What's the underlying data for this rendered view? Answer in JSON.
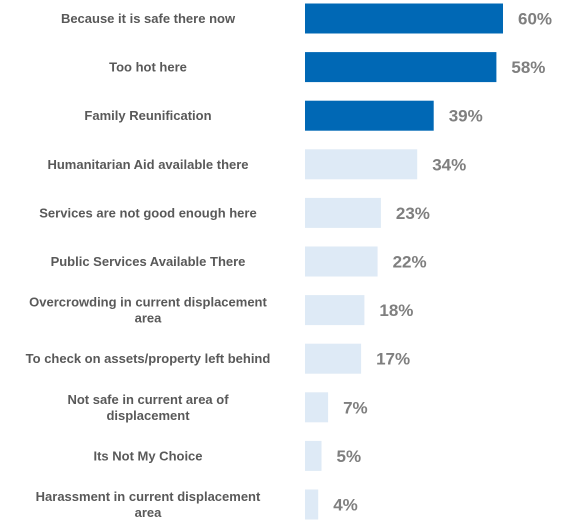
{
  "chart_data": {
    "type": "bar",
    "orientation": "horizontal",
    "title": "",
    "xlabel": "",
    "ylabel": "",
    "xlim": [
      0,
      60
    ],
    "grid": false,
    "legend": "none",
    "value_suffix": "%",
    "colors": {
      "highlight": "#0068B5",
      "default": "#DEEAF6",
      "category_text": "#595959",
      "value_text": "#7F7F7F"
    },
    "categories": [
      [
        "Because it is safe there now"
      ],
      [
        "Too hot here"
      ],
      [
        "Family Reunification"
      ],
      [
        "Humanitarian Aid available there"
      ],
      [
        "Services are not good enough here"
      ],
      [
        "Public Services Available There"
      ],
      [
        "Overcrowding in current displacement",
        "area"
      ],
      [
        "To check on assets/property left behind"
      ],
      [
        "Not safe in current area of",
        "displacement"
      ],
      [
        "Its Not My Choice"
      ],
      [
        "Harassment in current displacement",
        "area"
      ]
    ],
    "values": [
      60,
      58,
      39,
      34,
      23,
      22,
      18,
      17,
      7,
      5,
      4
    ],
    "highlighted": [
      true,
      true,
      true,
      false,
      false,
      false,
      false,
      false,
      false,
      false,
      false
    ]
  }
}
